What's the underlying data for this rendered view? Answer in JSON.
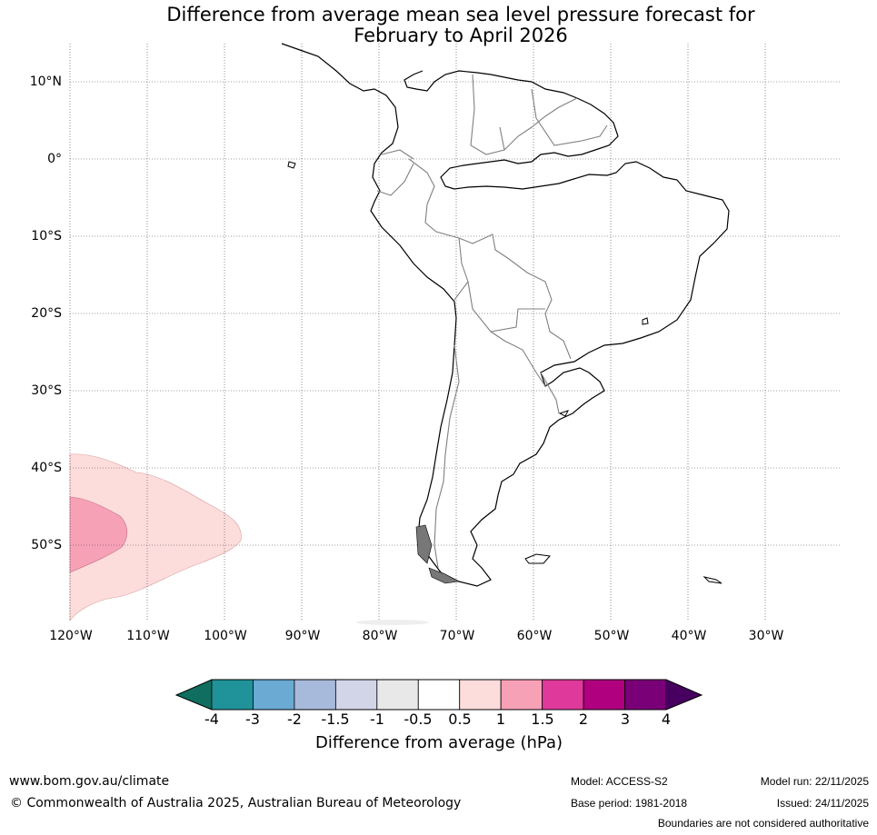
{
  "title": {
    "line1": "Difference from average mean sea level pressure forecast for",
    "line2": "February to April 2026"
  },
  "map": {
    "lat_labels": [
      "10°N",
      "0°",
      "10°S",
      "20°S",
      "30°S",
      "40°S",
      "50°S"
    ],
    "lon_labels": [
      "120°W",
      "110°W",
      "100°W",
      "90°W",
      "80°W",
      "70°W",
      "60°W",
      "50°W",
      "40°W",
      "30°W"
    ],
    "anomaly_regions": [
      {
        "category": "0.5 to 1 hPa",
        "color": "#fddcdc"
      },
      {
        "category": "1 to 1.5 hPa",
        "color": "#f7a1b7"
      }
    ]
  },
  "colorbar": {
    "colors": [
      "#0f6e5f",
      "#1f9399",
      "#6aaad3",
      "#a8badb",
      "#d2d4e8",
      "#e8e8e8",
      "#ffffff",
      "#fddcdc",
      "#f7a1b7",
      "#e0399c",
      "#b0007f",
      "#7a0077",
      "#470060"
    ],
    "ticks": [
      "-4",
      "-3",
      "-2",
      "-1.5",
      "-1",
      "-0.5",
      "0.5",
      "1",
      "1.5",
      "2",
      "3",
      "4"
    ],
    "label": "Difference from average (hPa)"
  },
  "footer": {
    "website": "www.bom.gov.au/climate",
    "copyright": "© Commonwealth of Australia 2025, Australian Bureau of Meteorology",
    "model": "Model: ACCESS-S2",
    "base_period": "Base period: 1981-2018",
    "model_run": "Model run: 22/11/2025",
    "issued": "Issued: 24/11/2025",
    "disclaimer": "Boundaries are not considered authoritative"
  }
}
